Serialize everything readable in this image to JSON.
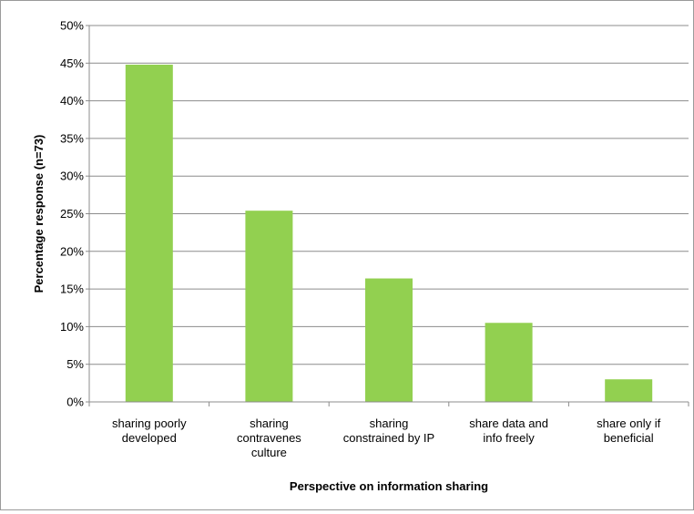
{
  "chart_data": {
    "type": "bar",
    "title": "",
    "xlabel": "Perspective on information sharing",
    "ylabel": "Percentage response  (n=73)",
    "ylim": [
      0,
      50
    ],
    "y_tick_step": 5,
    "y_tick_format": "percent",
    "grid": true,
    "legend": "none",
    "bar_color": "#92d050",
    "categories": [
      [
        "sharing poorly",
        "developed"
      ],
      [
        "sharing",
        "contravenes",
        "culture"
      ],
      [
        "sharing",
        "constrained by IP"
      ],
      [
        "share data and",
        "info freely"
      ],
      [
        "share only if",
        "beneficial"
      ]
    ],
    "values": [
      44.8,
      25.4,
      16.4,
      10.5,
      3.0
    ]
  }
}
